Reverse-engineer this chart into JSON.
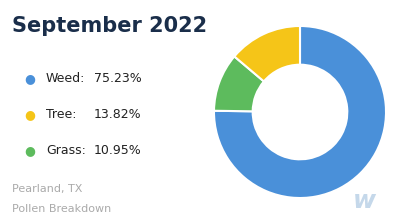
{
  "title": "September 2022",
  "title_color": "#1a2e4a",
  "title_fontsize": 15,
  "title_fontweight": "bold",
  "labels": [
    "Weed",
    "Tree",
    "Grass"
  ],
  "values": [
    75.23,
    13.82,
    10.95
  ],
  "colors": [
    "#4A90D9",
    "#F5C518",
    "#5DBB5D"
  ],
  "legend_items": [
    {
      "label": "Weed:",
      "value": "75.23%"
    },
    {
      "label": "Tree:",
      "value": "13.82%"
    },
    {
      "label": "Grass:",
      "value": "10.95%"
    }
  ],
  "footer_line1": "Pearland, TX",
  "footer_line2": "Pollen Breakdown",
  "footer_color": "#aaaaaa",
  "footer_fontsize": 8,
  "background_color": "#ffffff",
  "donut_width": 0.45,
  "startangle": 90,
  "watermark": "w",
  "watermark_color": "#c5d8ea",
  "legend_fontsize": 9,
  "legend_dot_fontsize": 9
}
